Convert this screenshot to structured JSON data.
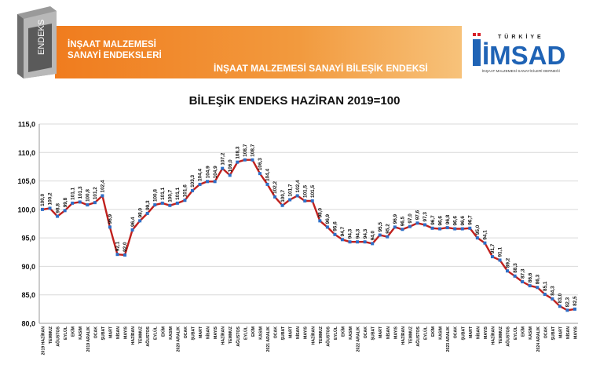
{
  "header": {
    "logo_text": "ENDEKS",
    "band_title_line1": "İNŞAAT MALZEMESİ",
    "band_title_line2": "SANAYİ ENDEKSLERİ",
    "band_subtitle": "İNŞAAT MALZEMESİ SANAYİ BİLEŞİK ENDEKSİ",
    "brand_top": "TÜRKİYE",
    "brand_name": "İMSAD",
    "brand_tagline": "İNŞAAT MALZEMESİ SANAYİCİLERİ DERNEĞİ"
  },
  "colors": {
    "orange": "#f07c1e",
    "line": "#c0201d",
    "marker": "#2e6fc7",
    "grid": "#d9d9d9"
  },
  "chart_data": {
    "type": "line",
    "title": "BİLEŞİK ENDEKS HAZİRAN 2019=100",
    "ylim": [
      80,
      115
    ],
    "yticks": [
      "80,0",
      "85,0",
      "90,0",
      "95,0",
      "100,0",
      "105,0",
      "110,0",
      "115,0"
    ],
    "grid": true,
    "categories": [
      "2019 HAZİRAN",
      "TEMMUZ",
      "AĞUSTOS",
      "EYLÜL",
      "EKİM",
      "KASIM",
      "2019 ARALIK",
      "OCAK",
      "ŞUBAT",
      "MART",
      "NİSAN",
      "MAYIS",
      "HAZİRAN",
      "TEMMUZ",
      "AĞUSTOS",
      "EYLÜL",
      "EKİM",
      "KASIM",
      "2020 ARALIK",
      "OCAK",
      "ŞUBAT",
      "MART",
      "NİSAN",
      "MAYIS",
      "HAZİRAN",
      "TEMMUZ",
      "AĞUSTOS",
      "EYLÜL",
      "EKİM",
      "KASIM",
      "2021 ARALIK",
      "OCAK",
      "ŞUBAT",
      "MART",
      "NİSAN",
      "MAYIS",
      "HAZİRAN",
      "TEMMUZ",
      "AĞUSTOS",
      "EYLÜL",
      "EKİM",
      "KASIM",
      "2022 ARALIK",
      "OCAK",
      "ŞUBAT",
      "MART",
      "NİSAN",
      "MAYIS",
      "HAZİRAN",
      "TEMMUZ",
      "AĞUSTOS",
      "EYLÜL",
      "EKİM",
      "KASIM",
      "2023 ARALIK",
      "OCAK",
      "ŞUBAT",
      "MART",
      "NİSAN",
      "MAYIS",
      "HAZİRAN",
      "TEMMUZ",
      "AĞUSTOS",
      "EYLÜL",
      "EKİM",
      "KASIM",
      "2024 ARALIK",
      "OCAK",
      "ŞUBAT",
      "MART",
      "NİSAN",
      "MAYIS"
    ],
    "values": [
      100.0,
      100.2,
      98.8,
      99.8,
      101.1,
      101.3,
      100.8,
      101.2,
      102.4,
      96.9,
      92.1,
      92.0,
      96.4,
      98.0,
      99.3,
      100.8,
      101.1,
      100.7,
      101.1,
      101.6,
      103.3,
      104.4,
      104.9,
      104.9,
      107.2,
      106.0,
      108.3,
      108.7,
      108.7,
      106.3,
      104.4,
      102.2,
      100.7,
      101.7,
      102.4,
      101.5,
      101.5,
      98.0,
      96.9,
      95.6,
      94.7,
      94.3,
      94.3,
      94.3,
      94.0,
      95.5,
      95.2,
      96.9,
      96.5,
      97.0,
      97.6,
      97.3,
      96.7,
      96.6,
      96.8,
      96.6,
      96.6,
      96.7,
      95.0,
      94.1,
      91.7,
      91.1,
      89.2,
      88.3,
      87.3,
      86.6,
      86.3,
      85.1,
      84.3,
      83.0,
      82.3,
      82.5
    ],
    "labels": [
      "100,0",
      "100,2",
      "98,8",
      "99,8",
      "101,1",
      "101,3",
      "100,8",
      "101,2",
      "102,4",
      "96,9",
      "92,1",
      "92,0",
      "96,4",
      "98,0",
      "99,3",
      "100,8",
      "101,1",
      "100,7",
      "101,1",
      "101,6",
      "103,3",
      "104,4",
      "104,9",
      "104,9",
      "107,2",
      "106,0",
      "108,3",
      "108,7",
      "108,7",
      "106,3",
      "104,4",
      "102,2",
      "100,7",
      "101,7",
      "102,4",
      "101,5",
      "101,5",
      "98,0",
      "96,9",
      "95,6",
      "94,7",
      "94,3",
      "94,3",
      "94,3",
      "94,0",
      "95,5",
      "95,2",
      "96,9",
      "96,5",
      "97,0",
      "97,6",
      "97,3",
      "96,7",
      "96,6",
      "96,8",
      "96,6",
      "96,6",
      "96,7",
      "95,0",
      "94,1",
      "91,7",
      "91,1",
      "89,2",
      "88,3",
      "87,3",
      "86,6",
      "86,3",
      "85,1",
      "84,3",
      "83,0",
      "82,3",
      "82,5"
    ]
  }
}
